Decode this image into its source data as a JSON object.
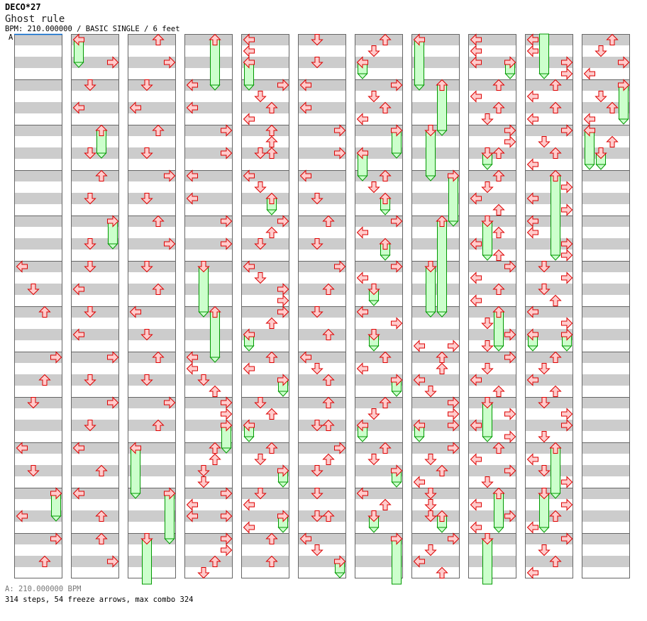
{
  "header": {
    "artist": "DECO*27",
    "title": "Ghost rule",
    "info": "BPM: 210.000000 / BASIC SINGLE / 6 feet",
    "bpm_marker": "A"
  },
  "footer": {
    "bpm_legend": "A: 210.000000 BPM",
    "stats": "314 steps, 54 freeze arrows, max combo 324"
  },
  "colors": {
    "stripe": "#cccccc",
    "border": "#666666",
    "arrow_fill": "#ffcccc",
    "arrow_stroke": "#dd0000",
    "freeze_fill": "#ccffcc",
    "freeze_stroke": "#009900",
    "bpm_line": "#0066cc"
  },
  "step_chart": {
    "measures_per_column": 12,
    "beats_per_measure": 4,
    "note_format": "[beat_in_column, lane(L/D/U/R), freeze_length_beats?]",
    "columns": [
      [
        [
          20,
          "L"
        ],
        [
          22,
          "D"
        ],
        [
          24,
          "U"
        ],
        [
          28,
          "R"
        ],
        [
          30,
          "U"
        ],
        [
          32,
          "D"
        ],
        [
          36,
          "L"
        ],
        [
          38,
          "D"
        ],
        [
          40,
          "R",
          2
        ],
        [
          42,
          "L"
        ],
        [
          44,
          "R"
        ],
        [
          46,
          "U"
        ]
      ],
      [
        [
          0,
          "L",
          2
        ],
        [
          2,
          "R"
        ],
        [
          4,
          "D"
        ],
        [
          6,
          "L"
        ],
        [
          8,
          "U",
          2
        ],
        [
          10,
          "D"
        ],
        [
          12,
          "U"
        ],
        [
          14,
          "D"
        ],
        [
          16,
          "R",
          2
        ],
        [
          18,
          "D"
        ],
        [
          20,
          "D"
        ],
        [
          22,
          "L"
        ],
        [
          24,
          "D"
        ],
        [
          26,
          "L"
        ],
        [
          28,
          "R"
        ],
        [
          30,
          "D"
        ],
        [
          32,
          "R"
        ],
        [
          34,
          "D"
        ],
        [
          36,
          "L"
        ],
        [
          38,
          "U"
        ],
        [
          40,
          "L"
        ],
        [
          42,
          "U"
        ],
        [
          44,
          "U"
        ],
        [
          46,
          "R"
        ]
      ],
      [
        [
          0,
          "U"
        ],
        [
          2,
          "R"
        ],
        [
          4,
          "D"
        ],
        [
          6,
          "L"
        ],
        [
          8,
          "U"
        ],
        [
          10,
          "D"
        ],
        [
          12,
          "R"
        ],
        [
          14,
          "D"
        ],
        [
          16,
          "U"
        ],
        [
          18,
          "R"
        ],
        [
          20,
          "D"
        ],
        [
          22,
          "U"
        ],
        [
          24,
          "L"
        ],
        [
          26,
          "D"
        ],
        [
          28,
          "U"
        ],
        [
          30,
          "D"
        ],
        [
          32,
          "R"
        ],
        [
          34,
          "U"
        ],
        [
          36,
          "L",
          4
        ],
        [
          40,
          "R",
          4
        ],
        [
          44,
          "D",
          4
        ]
      ],
      [
        [
          0,
          "U",
          4
        ],
        [
          4,
          "L"
        ],
        [
          6,
          "L"
        ],
        [
          8,
          "R"
        ],
        [
          10,
          "R"
        ],
        [
          12,
          "L"
        ],
        [
          14,
          "L"
        ],
        [
          16,
          "R"
        ],
        [
          18,
          "R"
        ],
        [
          20,
          "D",
          4
        ],
        [
          24,
          "U",
          4
        ],
        [
          28,
          "L"
        ],
        [
          29,
          "L"
        ],
        [
          30,
          "D"
        ],
        [
          31,
          "U"
        ],
        [
          32,
          "R"
        ],
        [
          33,
          "R"
        ],
        [
          34,
          "R",
          2
        ],
        [
          36,
          "U"
        ],
        [
          37,
          "U"
        ],
        [
          38,
          "D"
        ],
        [
          39,
          "D"
        ],
        [
          40,
          "R"
        ],
        [
          41,
          "L"
        ],
        [
          42,
          "L"
        ],
        [
          42,
          "R"
        ],
        [
          44,
          "R"
        ],
        [
          45,
          "R"
        ],
        [
          46,
          "U"
        ],
        [
          47,
          "D"
        ]
      ],
      [
        [
          0,
          "L"
        ],
        [
          1,
          "L"
        ],
        [
          2,
          "L",
          2
        ],
        [
          4,
          "R"
        ],
        [
          5,
          "D"
        ],
        [
          6,
          "U"
        ],
        [
          7,
          "L"
        ],
        [
          8,
          "U"
        ],
        [
          9,
          "U"
        ],
        [
          10,
          "D"
        ],
        [
          10,
          "U"
        ],
        [
          12,
          "L"
        ],
        [
          13,
          "D"
        ],
        [
          14,
          "U",
          1
        ],
        [
          16,
          "R"
        ],
        [
          17,
          "U"
        ],
        [
          18,
          "D"
        ],
        [
          20,
          "L"
        ],
        [
          21,
          "D"
        ],
        [
          22,
          "R"
        ],
        [
          23,
          "R"
        ],
        [
          24,
          "R"
        ],
        [
          25,
          "U"
        ],
        [
          26,
          "L",
          1
        ],
        [
          28,
          "U"
        ],
        [
          29,
          "L"
        ],
        [
          30,
          "R",
          1
        ],
        [
          32,
          "D"
        ],
        [
          33,
          "U"
        ],
        [
          34,
          "L",
          1
        ],
        [
          36,
          "U"
        ],
        [
          37,
          "D"
        ],
        [
          38,
          "R",
          1
        ],
        [
          40,
          "D"
        ],
        [
          41,
          "L"
        ],
        [
          42,
          "R",
          1
        ],
        [
          43,
          "L"
        ],
        [
          44,
          "U"
        ],
        [
          46,
          "U"
        ]
      ],
      [
        [
          0,
          "D"
        ],
        [
          2,
          "D"
        ],
        [
          4,
          "L"
        ],
        [
          6,
          "L"
        ],
        [
          8,
          "R"
        ],
        [
          10,
          "R"
        ],
        [
          12,
          "L"
        ],
        [
          14,
          "D"
        ],
        [
          16,
          "U"
        ],
        [
          18,
          "D"
        ],
        [
          20,
          "R"
        ],
        [
          22,
          "U"
        ],
        [
          24,
          "D"
        ],
        [
          26,
          "U"
        ],
        [
          28,
          "L"
        ],
        [
          29,
          "D"
        ],
        [
          30,
          "U"
        ],
        [
          32,
          "U"
        ],
        [
          34,
          "D"
        ],
        [
          34,
          "U"
        ],
        [
          36,
          "R"
        ],
        [
          37,
          "U"
        ],
        [
          38,
          "D"
        ],
        [
          40,
          "D"
        ],
        [
          42,
          "D"
        ],
        [
          42,
          "U"
        ],
        [
          44,
          "L"
        ],
        [
          45,
          "D"
        ],
        [
          46,
          "R",
          1
        ]
      ],
      [
        [
          0,
          "U"
        ],
        [
          1,
          "D"
        ],
        [
          2,
          "L",
          1
        ],
        [
          4,
          "R"
        ],
        [
          5,
          "D"
        ],
        [
          6,
          "U"
        ],
        [
          7,
          "L"
        ],
        [
          8,
          "R",
          2
        ],
        [
          10,
          "L",
          2
        ],
        [
          12,
          "U"
        ],
        [
          13,
          "D"
        ],
        [
          14,
          "U",
          1
        ],
        [
          16,
          "R"
        ],
        [
          17,
          "L"
        ],
        [
          18,
          "U",
          1
        ],
        [
          20,
          "R"
        ],
        [
          21,
          "L"
        ],
        [
          22,
          "D",
          1
        ],
        [
          24,
          "L"
        ],
        [
          25,
          "R"
        ],
        [
          26,
          "D",
          1
        ],
        [
          28,
          "U"
        ],
        [
          29,
          "L"
        ],
        [
          30,
          "R",
          1
        ],
        [
          32,
          "U"
        ],
        [
          33,
          "D"
        ],
        [
          34,
          "L",
          1
        ],
        [
          36,
          "U"
        ],
        [
          37,
          "D"
        ],
        [
          38,
          "R",
          1
        ],
        [
          40,
          "L"
        ],
        [
          41,
          "U"
        ],
        [
          42,
          "D",
          1
        ],
        [
          44,
          "R",
          4
        ]
      ],
      [
        [
          0,
          "L",
          4
        ],
        [
          4,
          "U",
          4
        ],
        [
          8,
          "D",
          4
        ],
        [
          12,
          "R",
          4
        ],
        [
          16,
          "U",
          8
        ],
        [
          20,
          "D",
          4
        ],
        [
          27,
          "L"
        ],
        [
          27,
          "R"
        ],
        [
          28,
          "U"
        ],
        [
          29,
          "U"
        ],
        [
          30,
          "L"
        ],
        [
          31,
          "D"
        ],
        [
          32,
          "R"
        ],
        [
          33,
          "R"
        ],
        [
          34,
          "R"
        ],
        [
          34,
          "L",
          1
        ],
        [
          36,
          "R"
        ],
        [
          37,
          "D"
        ],
        [
          38,
          "U"
        ],
        [
          39,
          "L"
        ],
        [
          40,
          "D"
        ],
        [
          41,
          "D"
        ],
        [
          42,
          "D"
        ],
        [
          42,
          "U",
          1
        ],
        [
          44,
          "R"
        ],
        [
          45,
          "D"
        ],
        [
          46,
          "L"
        ],
        [
          47,
          "U"
        ]
      ],
      [
        [
          0,
          "L"
        ],
        [
          1,
          "L"
        ],
        [
          2,
          "L"
        ],
        [
          2,
          "R",
          1
        ],
        [
          4,
          "U"
        ],
        [
          5,
          "L"
        ],
        [
          6,
          "U"
        ],
        [
          7,
          "D"
        ],
        [
          8,
          "R"
        ],
        [
          9,
          "R"
        ],
        [
          10,
          "D",
          1
        ],
        [
          10,
          "U"
        ],
        [
          12,
          "U"
        ],
        [
          13,
          "D"
        ],
        [
          14,
          "L"
        ],
        [
          15,
          "U"
        ],
        [
          16,
          "D",
          3
        ],
        [
          17,
          "U"
        ],
        [
          18,
          "L"
        ],
        [
          19,
          "U"
        ],
        [
          20,
          "R"
        ],
        [
          21,
          "L"
        ],
        [
          22,
          "U"
        ],
        [
          23,
          "L"
        ],
        [
          24,
          "U",
          3
        ],
        [
          25,
          "D"
        ],
        [
          26,
          "R"
        ],
        [
          27,
          "D"
        ],
        [
          28,
          "R"
        ],
        [
          29,
          "D"
        ],
        [
          30,
          "L"
        ],
        [
          31,
          "U"
        ],
        [
          32,
          "D",
          3
        ],
        [
          33,
          "R"
        ],
        [
          34,
          "L"
        ],
        [
          35,
          "R"
        ],
        [
          36,
          "U"
        ],
        [
          37,
          "L"
        ],
        [
          38,
          "R"
        ],
        [
          39,
          "D"
        ],
        [
          40,
          "U",
          3
        ],
        [
          41,
          "L"
        ],
        [
          42,
          "R"
        ],
        [
          43,
          "L"
        ],
        [
          44,
          "D",
          7
        ]
      ],
      [
        [
          0,
          "L"
        ],
        [
          1,
          "L"
        ],
        [
          2,
          "R"
        ],
        [
          3,
          "R"
        ],
        [
          4,
          "U"
        ],
        [
          5,
          "L"
        ],
        [
          6,
          "U"
        ],
        [
          7,
          "L"
        ],
        [
          8,
          "R"
        ],
        [
          9,
          "D"
        ],
        [
          10,
          "U"
        ],
        [
          11,
          "L"
        ],
        [
          12,
          "U",
          7
        ],
        [
          13,
          "R"
        ],
        [
          14,
          "L"
        ],
        [
          15,
          "R"
        ],
        [
          16,
          "L"
        ],
        [
          17,
          "L"
        ],
        [
          18,
          "R"
        ],
        [
          19,
          "R"
        ],
        [
          20,
          "D"
        ],
        [
          21,
          "R"
        ],
        [
          22,
          "D"
        ],
        [
          23,
          "U"
        ],
        [
          24,
          "L"
        ],
        [
          25,
          "R"
        ],
        [
          26,
          "L",
          1
        ],
        [
          26,
          "R",
          1
        ],
        [
          28,
          "U"
        ],
        [
          29,
          "D"
        ],
        [
          30,
          "L"
        ],
        [
          31,
          "U"
        ],
        [
          32,
          "D"
        ],
        [
          33,
          "R"
        ],
        [
          34,
          "R"
        ],
        [
          35,
          "D"
        ],
        [
          36,
          "U",
          4
        ],
        [
          37,
          "L"
        ],
        [
          38,
          "D"
        ],
        [
          39,
          "R"
        ],
        [
          40,
          "D",
          3
        ],
        [
          41,
          "R"
        ],
        [
          42,
          "U"
        ],
        [
          43,
          "L"
        ],
        [
          44,
          "R"
        ],
        [
          45,
          "D"
        ],
        [
          46,
          "U"
        ],
        [
          47,
          "L"
        ]
      ],
      [
        [
          0,
          "U"
        ],
        [
          1,
          "D"
        ],
        [
          2,
          "R"
        ],
        [
          3,
          "L"
        ],
        [
          4,
          "R",
          3
        ],
        [
          5,
          "D"
        ],
        [
          6,
          "U"
        ],
        [
          7,
          "L"
        ],
        [
          8,
          "L",
          3
        ],
        [
          9,
          "U"
        ],
        [
          10,
          "D",
          1
        ]
      ]
    ]
  }
}
